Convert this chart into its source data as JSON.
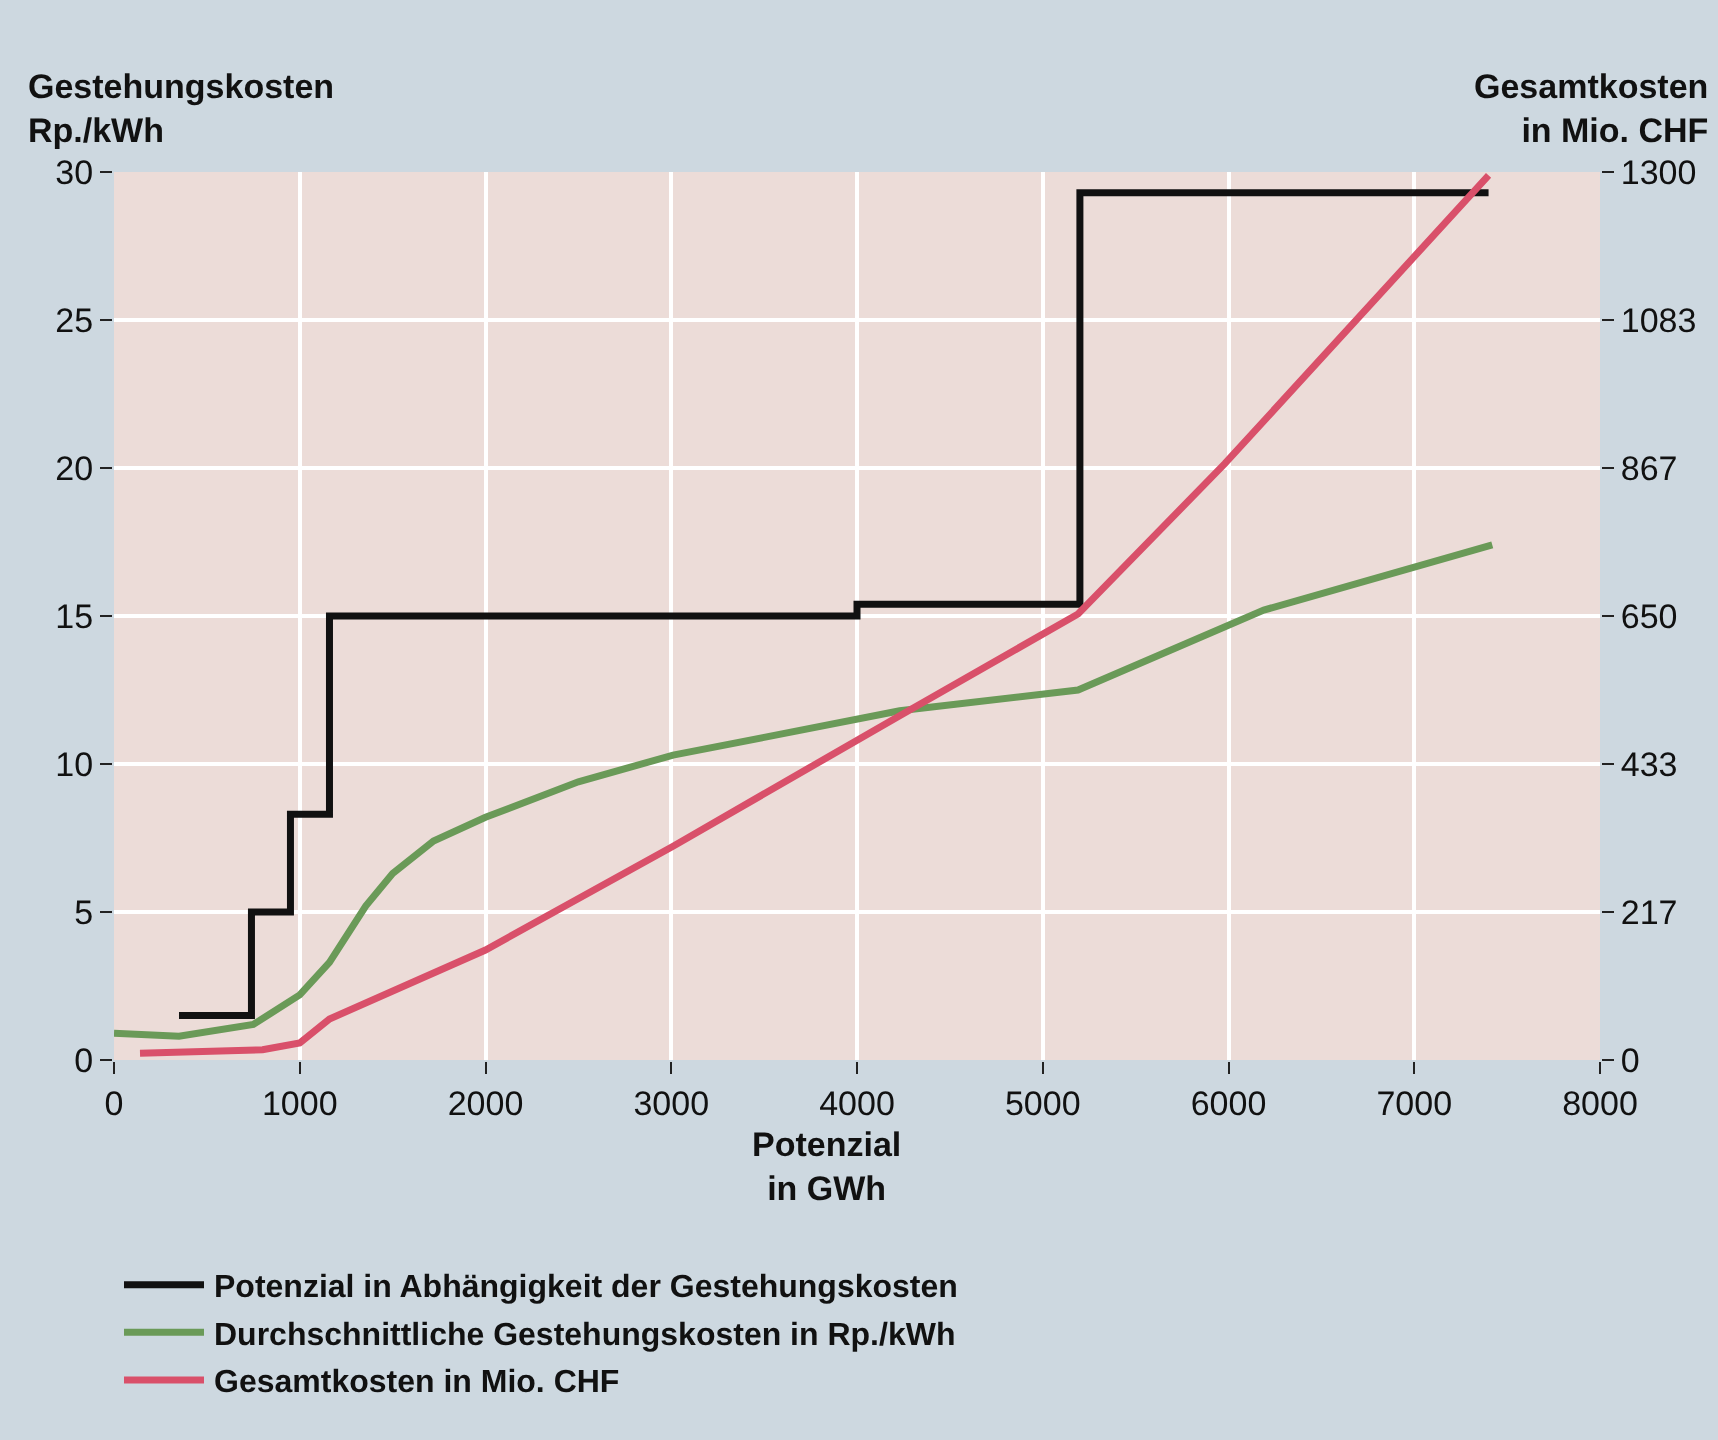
{
  "chart_data": {
    "type": "line",
    "xlabel": "Potenzial\nin GWh",
    "ylabel": "Gestehungskosten\nRp./kWh",
    "y2label": "Gesamtkosten\nin Mio. CHF",
    "xlim": [
      0,
      8000
    ],
    "xticks": [
      0,
      1000,
      2000,
      3000,
      4000,
      5000,
      6000,
      7000,
      8000
    ],
    "ylim": [
      0,
      30
    ],
    "yticks": [
      0,
      5,
      10,
      15,
      20,
      25,
      30
    ],
    "y2lim": [
      0,
      1300
    ],
    "y2ticks": [
      0,
      217,
      433,
      650,
      867,
      1083,
      1300
    ],
    "grid": true,
    "legend": "bottom",
    "series": [
      {
        "name": "Potenzial in Abhängigkeit der Gestehungskosten",
        "type": "step",
        "color": "#111111",
        "x": [
          350,
          740,
          950,
          1160,
          4000,
          5200,
          7400
        ],
        "values": [
          1.5,
          5,
          8.3,
          15,
          15.4,
          29.3,
          29.3
        ]
      },
      {
        "name": "Durchschnittliche Gestehungskosten in Rp./kWh",
        "color": "#6a9a58",
        "x": [
          0,
          350,
          750,
          1000,
          1160,
          1355,
          1500,
          1720,
          2000,
          2500,
          3010,
          3500,
          4230,
          5190,
          6190,
          7420
        ],
        "values": [
          0.9,
          0.8,
          1.2,
          2.2,
          3.3,
          5.2,
          6.3,
          7.4,
          8.2,
          9.4,
          10.3,
          10.9,
          11.8,
          12.5,
          15.2,
          17.4
        ]
      },
      {
        "name": "Gesamtkosten in Mio. CHF",
        "axis": "y2",
        "color": "#d9506a",
        "x": [
          140,
          800,
          1000,
          1160,
          2000,
          3010,
          4230,
          5190,
          5980,
          7400
        ],
        "values": [
          10,
          15,
          25,
          60,
          161,
          313,
          504,
          653,
          873,
          1295
        ]
      }
    ]
  }
}
